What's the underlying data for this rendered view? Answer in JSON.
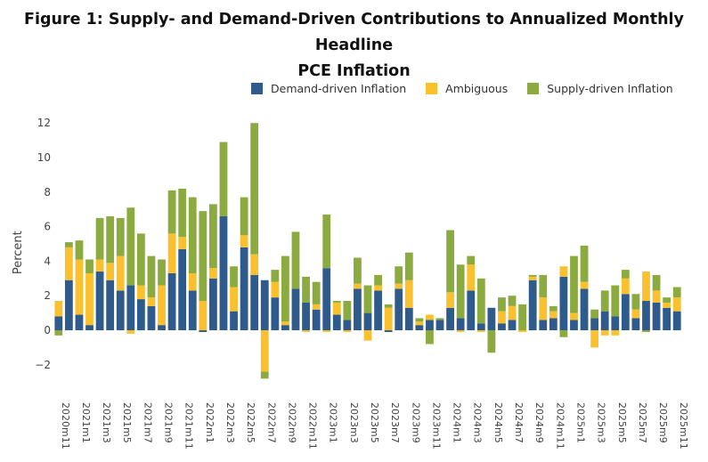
{
  "chart_data": {
    "type": "bar",
    "stacked": true,
    "title_line1": "Figure 1: Supply- and Demand-Driven Contributions to Annualized Monthly Headline",
    "title_line2": "PCE Inflation",
    "ylabel": "Percent",
    "ylim": [
      -3,
      12
    ],
    "yticks": [
      12,
      10,
      8,
      6,
      4,
      2,
      0,
      -2
    ],
    "categories": [
      "2020m11",
      "2020m12",
      "2021m1",
      "2021m2",
      "2021m3",
      "2021m4",
      "2021m5",
      "2021m6",
      "2021m7",
      "2021m8",
      "2021m9",
      "2021m10",
      "2021m11",
      "2021m12",
      "2022m1",
      "2022m2",
      "2022m3",
      "2022m4",
      "2022m5",
      "2022m6",
      "2022m7",
      "2022m8",
      "2022m9",
      "2022m10",
      "2022m11",
      "2022m12",
      "2023m1",
      "2023m2",
      "2023m3",
      "2023m4",
      "2023m5",
      "2023m6",
      "2023m7",
      "2023m8",
      "2023m9",
      "2023m10",
      "2023m11",
      "2023m12",
      "2024m1",
      "2024m2",
      "2024m3",
      "2024m4",
      "2024m5",
      "2024m6",
      "2024m7",
      "2024m8",
      "2024m9",
      "2024m10",
      "2024m11",
      "2024m12",
      "2025m1",
      "2025m2",
      "2025m3",
      "2025m4",
      "2025m5",
      "2025m6",
      "2025m7",
      "2025m8",
      "2025m9",
      "2025m10",
      "2025m11"
    ],
    "xtick_labels": [
      "2020m11",
      "2021m1",
      "2021m3",
      "2021m5",
      "2021m7",
      "2021m9",
      "2021m11",
      "2022m1",
      "2022m3",
      "2022m5",
      "2022m7",
      "2022m9",
      "2022m11",
      "2023m1",
      "2023m3",
      "2023m5",
      "2023m7",
      "2023m9",
      "2023m11",
      "2024m1",
      "2024m3",
      "2024m5",
      "2024m7",
      "2024m9",
      "2024m11",
      "2025m1",
      "2025m3",
      "2025m5",
      "2025m7",
      "2025m9",
      "2025m11"
    ],
    "legend": [
      "Demand-driven Inflation",
      "Ambiguous",
      "Supply-driven Inflation"
    ],
    "colors": {
      "demand": "#2e5b8c",
      "ambiguous": "#fbc02d",
      "supply": "#8bab40"
    },
    "series": [
      {
        "name": "Demand-driven Inflation",
        "key": "demand",
        "values": [
          0.8,
          2.9,
          0.9,
          0.3,
          3.4,
          2.9,
          2.3,
          2.6,
          1.8,
          1.4,
          0.3,
          3.3,
          4.7,
          2.3,
          -0.1,
          3.0,
          6.6,
          1.1,
          4.8,
          3.2,
          2.9,
          1.9,
          0.3,
          2.4,
          1.6,
          1.2,
          3.6,
          0.9,
          0.6,
          2.4,
          1.0,
          2.3,
          -0.1,
          2.4,
          1.3,
          0.3,
          0.6,
          0.6,
          1.3,
          0.7,
          2.3,
          0.4,
          1.3,
          0.4,
          0.6,
          0.0,
          2.9,
          0.6,
          0.7,
          3.1,
          0.6,
          2.4,
          0.7,
          1.1,
          0.8,
          2.1,
          0.7,
          1.7,
          1.6,
          1.3,
          1.1
        ]
      },
      {
        "name": "Ambiguous",
        "key": "ambiguous",
        "values": [
          0.9,
          1.9,
          3.2,
          3.0,
          0.7,
          1.0,
          2.0,
          -0.2,
          0.8,
          0.5,
          2.3,
          2.3,
          0.7,
          1.0,
          1.7,
          0.6,
          0.0,
          1.4,
          0.7,
          1.2,
          -2.4,
          0.9,
          0.2,
          0.0,
          -0.1,
          0.3,
          -0.1,
          0.7,
          -0.1,
          0.3,
          -0.6,
          0.3,
          1.3,
          0.3,
          1.6,
          0.2,
          0.3,
          0.0,
          0.9,
          -0.1,
          1.5,
          -0.1,
          0.0,
          0.7,
          0.8,
          -0.1,
          0.2,
          1.3,
          0.4,
          0.6,
          0.4,
          0.4,
          -1.0,
          -0.3,
          -0.3,
          0.9,
          0.5,
          1.7,
          0.7,
          0.3,
          0.8
        ]
      },
      {
        "name": "Supply-driven Inflation",
        "key": "supply",
        "values": [
          -0.3,
          0.3,
          1.1,
          0.8,
          2.4,
          2.7,
          2.2,
          4.5,
          3.0,
          2.4,
          1.5,
          2.5,
          2.8,
          4.4,
          5.2,
          3.7,
          4.3,
          1.2,
          2.2,
          7.6,
          -0.4,
          0.7,
          3.8,
          3.3,
          1.5,
          1.3,
          3.1,
          0.1,
          1.1,
          1.5,
          1.6,
          0.6,
          0.2,
          1.0,
          1.6,
          0.2,
          -0.8,
          0.1,
          3.6,
          3.1,
          0.5,
          2.6,
          -1.3,
          0.8,
          0.6,
          1.5,
          0.1,
          1.3,
          0.3,
          -0.4,
          3.3,
          2.1,
          0.5,
          1.2,
          1.8,
          0.5,
          0.9,
          -0.1,
          0.9,
          0.3,
          0.6
        ]
      }
    ]
  }
}
